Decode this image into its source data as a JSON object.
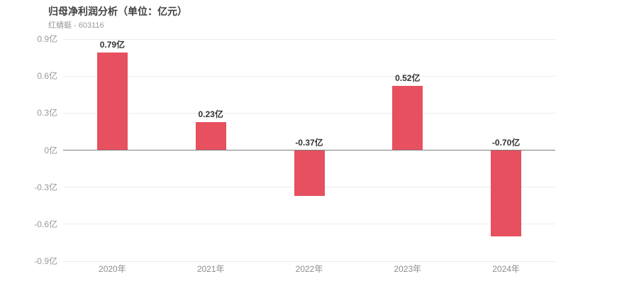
{
  "header": {
    "title": "归母净利润分析（单位：亿元）",
    "subtitle": "红蜻蜓 - 603116"
  },
  "chart_data": {
    "type": "bar",
    "title": "归母净利润分析（单位：亿元）",
    "subtitle": "红蜻蜓 - 603116",
    "categories": [
      "2020年",
      "2021年",
      "2022年",
      "2023年",
      "2024年"
    ],
    "values": [
      0.79,
      0.23,
      -0.37,
      0.52,
      -0.7
    ],
    "value_labels": [
      "0.79亿",
      "0.23亿",
      "-0.37亿",
      "0.52亿",
      "-0.70亿"
    ],
    "y_ticks": [
      0.9,
      0.6,
      0.3,
      0,
      -0.3,
      -0.6,
      -0.9
    ],
    "y_tick_labels": [
      "0.9亿",
      "0.6亿",
      "0.3亿",
      "0亿",
      "-0.3亿",
      "-0.6亿",
      "-0.9亿"
    ],
    "ylim": [
      -0.9,
      0.9
    ],
    "xlabel": "",
    "ylabel": "",
    "grid": true,
    "legend": false,
    "colors": {
      "bar": "#e6505f",
      "gridline": "#ececec",
      "zero_line": "#7d7d7d",
      "y_tick_label": "#999999",
      "x_tick_label": "#8c8c8c",
      "value_label": "#333333",
      "title": "#404040",
      "subtitle": "#9a9a9a",
      "background": "#ffffff"
    }
  }
}
